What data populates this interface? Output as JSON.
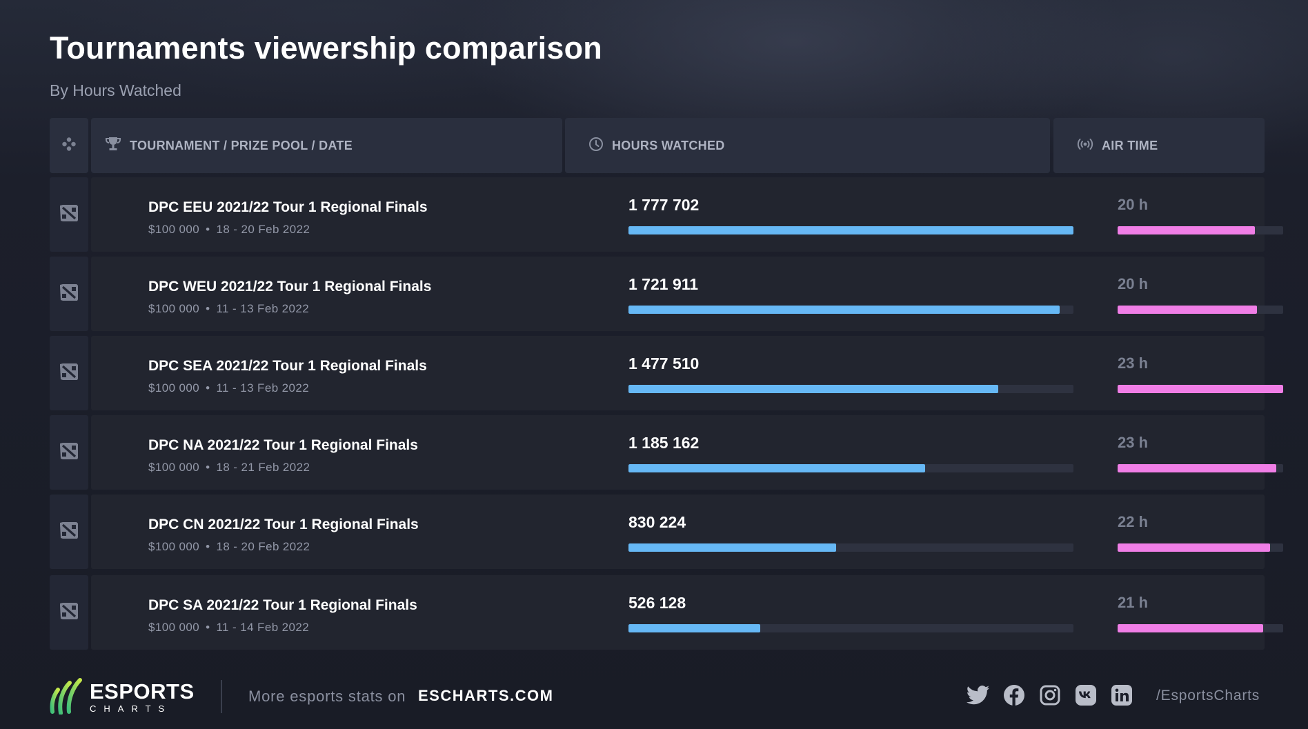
{
  "header": {
    "title": "Tournaments viewership comparison",
    "subtitle": "By Hours Watched"
  },
  "table": {
    "columns": {
      "tournament": "TOURNAMENT / PRIZE POOL / DATE",
      "hours": "HOURS WATCHED",
      "air": "AIR TIME"
    },
    "icons": {
      "column_game": "gamepad-icon",
      "column_tournament": "trophy-icon",
      "column_hours": "clock-icon",
      "column_air": "broadcast-icon",
      "row_game": "dota2-logo-icon"
    },
    "colors": {
      "hours_bar": "#66b8f5",
      "air_bar": "#f07ee6",
      "track": "#2e3240"
    }
  },
  "chart_data": {
    "type": "bar",
    "categories": [
      "DPC EEU 2021/22 Tour 1 Regional Finals",
      "DPC WEU 2021/22 Tour 1 Regional Finals",
      "DPC SEA 2021/22 Tour 1 Regional Finals",
      "DPC NA 2021/22 Tour 1 Regional Finals",
      "DPC CN 2021/22 Tour 1 Regional Finals",
      "DPC SA 2021/22 Tour 1 Regional Finals"
    ],
    "series": [
      {
        "name": "HOURS WATCHED",
        "values": [
          1777702,
          1721911,
          1477510,
          1185162,
          830224,
          526128
        ]
      },
      {
        "name": "AIR TIME",
        "values": [
          20,
          20,
          23,
          23,
          22,
          21
        ]
      }
    ],
    "rows": [
      {
        "name": "DPC EEU 2021/22 Tour 1 Regional Finals",
        "prize": "$100 000",
        "date": "18 - 20 Feb 2022",
        "hours_label": "1 777 702",
        "hours": 1777702,
        "air_label": "20 h",
        "air_fraction": 0.83
      },
      {
        "name": "DPC WEU 2021/22 Tour 1 Regional Finals",
        "prize": "$100 000",
        "date": "11 - 13 Feb 2022",
        "hours_label": "1 721 911",
        "hours": 1721911,
        "air_label": "20 h",
        "air_fraction": 0.84
      },
      {
        "name": "DPC SEA 2021/22 Tour 1 Regional Finals",
        "prize": "$100 000",
        "date": "11 - 13 Feb 2022",
        "hours_label": "1 477 510",
        "hours": 1477510,
        "air_label": "23 h",
        "air_fraction": 1.0
      },
      {
        "name": "DPC NA 2021/22 Tour 1 Regional Finals",
        "prize": "$100 000",
        "date": "18 - 21 Feb 2022",
        "hours_label": "1 185 162",
        "hours": 1185162,
        "air_label": "23 h",
        "air_fraction": 0.96
      },
      {
        "name": "DPC CN 2021/22 Tour 1 Regional Finals",
        "prize": "$100 000",
        "date": "18 - 20 Feb 2022",
        "hours_label": "830 224",
        "hours": 830224,
        "air_label": "22 h",
        "air_fraction": 0.92
      },
      {
        "name": "DPC SA 2021/22 Tour 1 Regional Finals",
        "prize": "$100 000",
        "date": "11 - 14 Feb 2022",
        "hours_label": "526 128",
        "hours": 526128,
        "air_label": "21 h",
        "air_fraction": 0.88
      }
    ],
    "hours_max": 1777702
  },
  "footer": {
    "logo_main": "ESPORTS",
    "logo_sub": "CHARTS",
    "text": "More esports stats on",
    "site": "ESCHARTS.COM",
    "handle": "/EsportsCharts",
    "social_icons": [
      "twitter-icon",
      "facebook-icon",
      "instagram-icon",
      "vk-icon",
      "linkedin-icon"
    ]
  }
}
